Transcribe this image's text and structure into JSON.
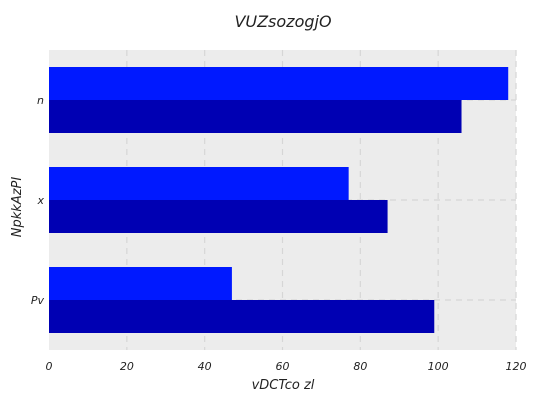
{
  "chart_data": {
    "type": "bar",
    "orientation": "horizontal",
    "title": "VUZsozogjO",
    "xlabel": "vDCTco  zl",
    "ylabel": "NpkkAzPI",
    "categories": [
      "Pv",
      "x",
      "n"
    ],
    "series": [
      {
        "values": [
          47,
          77,
          118
        ],
        "color": "#0019ff"
      },
      {
        "values": [
          99,
          87,
          106
        ],
        "color": "#0000b3"
      }
    ],
    "xlim": [
      0,
      120
    ],
    "xticks": [
      0,
      20,
      40,
      60,
      80,
      100,
      120
    ],
    "grid": true,
    "background": "#ececec"
  }
}
